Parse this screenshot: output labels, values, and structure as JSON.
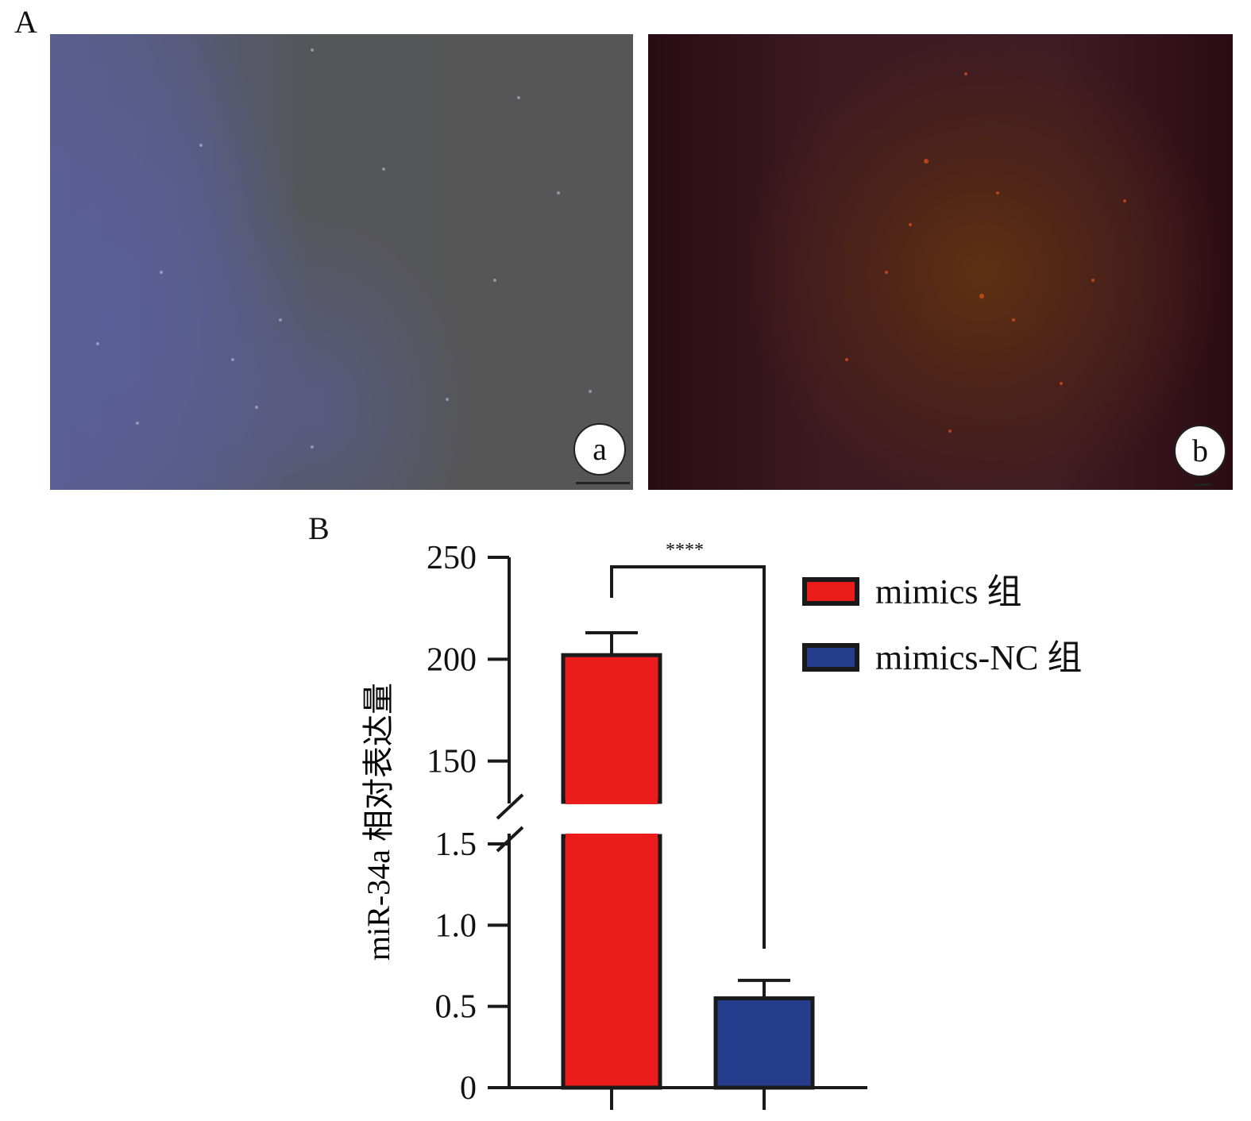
{
  "panels": {
    "A": {
      "letter": "A",
      "sub_a": "a",
      "sub_b": "b"
    },
    "B": {
      "letter": "B"
    }
  },
  "colors": {
    "mimics": "#ec1c1c",
    "mimics_nc": "#263c8c",
    "outline": "#1a1a1a"
  },
  "chart_data": {
    "type": "bar",
    "ylabel": "miR-34a 相对表达量",
    "broken_axis": true,
    "axis_segments": {
      "lower": {
        "ylim": [
          0,
          1.5
        ],
        "ticks": [
          "0",
          "0.5",
          "1.0",
          "1.5"
        ]
      },
      "upper": {
        "ylim": [
          130,
          250
        ],
        "ticks": [
          "150",
          "200",
          "250"
        ]
      }
    },
    "series": [
      {
        "name": "mimics 组",
        "value": 202,
        "error": 11
      },
      {
        "name": "mimics-NC 组",
        "value": 0.55,
        "error": 0.11
      }
    ],
    "significance": "****",
    "legend_position": "top-right"
  }
}
